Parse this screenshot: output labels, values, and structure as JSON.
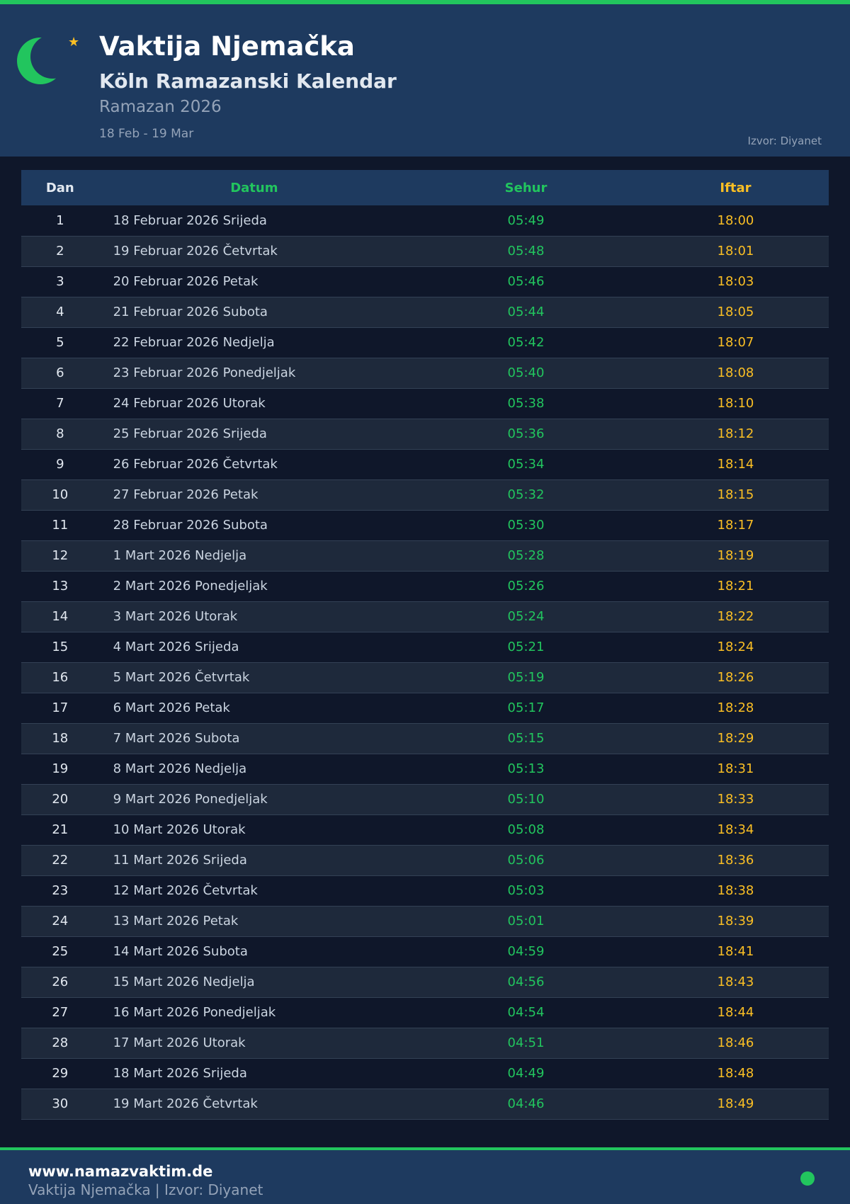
{
  "header": {
    "title": "Vaktija Njemačka",
    "subtitle": "Köln Ramazanski Kalendar",
    "year": "Ramazan 2026",
    "range": "18 Feb - 19 Mar",
    "source": "Izvor: Diyanet",
    "icons": [
      "crescent-moon-icon",
      "star-icon"
    ]
  },
  "colors": {
    "accent": "#22c55e",
    "iftar": "#fbbf24",
    "header_bg": "#1e3a5f",
    "page_bg": "#0f172a"
  },
  "table": {
    "headers": [
      "Dan",
      "Datum",
      "Sehur",
      "Iftar"
    ],
    "rows": [
      [
        "1",
        "18 Februar 2026 Srijeda",
        "05:49",
        "18:00"
      ],
      [
        "2",
        "19 Februar 2026 Četvrtak",
        "05:48",
        "18:01"
      ],
      [
        "3",
        "20 Februar 2026 Petak",
        "05:46",
        "18:03"
      ],
      [
        "4",
        "21 Februar 2026 Subota",
        "05:44",
        "18:05"
      ],
      [
        "5",
        "22 Februar 2026 Nedjelja",
        "05:42",
        "18:07"
      ],
      [
        "6",
        "23 Februar 2026 Ponedjeljak",
        "05:40",
        "18:08"
      ],
      [
        "7",
        "24 Februar 2026 Utorak",
        "05:38",
        "18:10"
      ],
      [
        "8",
        "25 Februar 2026 Srijeda",
        "05:36",
        "18:12"
      ],
      [
        "9",
        "26 Februar 2026 Četvrtak",
        "05:34",
        "18:14"
      ],
      [
        "10",
        "27 Februar 2026 Petak",
        "05:32",
        "18:15"
      ],
      [
        "11",
        "28 Februar 2026 Subota",
        "05:30",
        "18:17"
      ],
      [
        "12",
        "1 Mart 2026 Nedjelja",
        "05:28",
        "18:19"
      ],
      [
        "13",
        "2 Mart 2026 Ponedjeljak",
        "05:26",
        "18:21"
      ],
      [
        "14",
        "3 Mart 2026 Utorak",
        "05:24",
        "18:22"
      ],
      [
        "15",
        "4 Mart 2026 Srijeda",
        "05:21",
        "18:24"
      ],
      [
        "16",
        "5 Mart 2026 Četvrtak",
        "05:19",
        "18:26"
      ],
      [
        "17",
        "6 Mart 2026 Petak",
        "05:17",
        "18:28"
      ],
      [
        "18",
        "7 Mart 2026 Subota",
        "05:15",
        "18:29"
      ],
      [
        "19",
        "8 Mart 2026 Nedjelja",
        "05:13",
        "18:31"
      ],
      [
        "20",
        "9 Mart 2026 Ponedjeljak",
        "05:10",
        "18:33"
      ],
      [
        "21",
        "10 Mart 2026 Utorak",
        "05:08",
        "18:34"
      ],
      [
        "22",
        "11 Mart 2026 Srijeda",
        "05:06",
        "18:36"
      ],
      [
        "23",
        "12 Mart 2026 Četvrtak",
        "05:03",
        "18:38"
      ],
      [
        "24",
        "13 Mart 2026 Petak",
        "05:01",
        "18:39"
      ],
      [
        "25",
        "14 Mart 2026 Subota",
        "04:59",
        "18:41"
      ],
      [
        "26",
        "15 Mart 2026 Nedjelja",
        "04:56",
        "18:43"
      ],
      [
        "27",
        "16 Mart 2026 Ponedjeljak",
        "04:54",
        "18:44"
      ],
      [
        "28",
        "17 Mart 2026 Utorak",
        "04:51",
        "18:46"
      ],
      [
        "29",
        "18 Mart 2026 Srijeda",
        "04:49",
        "18:48"
      ],
      [
        "30",
        "19 Mart 2026 Četvrtak",
        "04:46",
        "18:49"
      ]
    ]
  },
  "footer": {
    "site": "www.namazvaktim.de",
    "info": "Vaktija Njemačka | Izvor: Diyanet"
  }
}
